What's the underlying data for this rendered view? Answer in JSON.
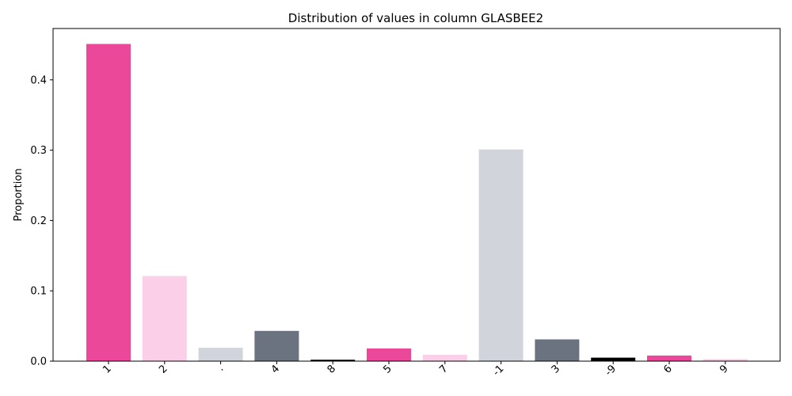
{
  "chart_data": {
    "type": "bar",
    "title": "Distribution of values in column GLASBEE2",
    "xlabel": "",
    "ylabel": "Proportion",
    "categories": [
      "1",
      "2",
      ".",
      "4",
      "8",
      "5",
      "7",
      "-1",
      "3",
      "-9",
      "6",
      "9"
    ],
    "values": [
      0.451,
      0.121,
      0.019,
      0.043,
      0.002,
      0.018,
      0.009,
      0.301,
      0.031,
      0.005,
      0.008,
      0.003
    ],
    "colors": [
      "#ec4899",
      "#fbcfe8",
      "#d1d5db",
      "#6b7280",
      "#000000",
      "#ec4899",
      "#fbcfe8",
      "#d1d5db",
      "#6b7280",
      "#000000",
      "#ec4899",
      "#fbcfe8"
    ],
    "ylim": [
      0,
      0.473
    ],
    "yticks": [
      "0.0",
      "0.1",
      "0.2",
      "0.3",
      "0.4"
    ],
    "grid": false,
    "legend": "none"
  }
}
